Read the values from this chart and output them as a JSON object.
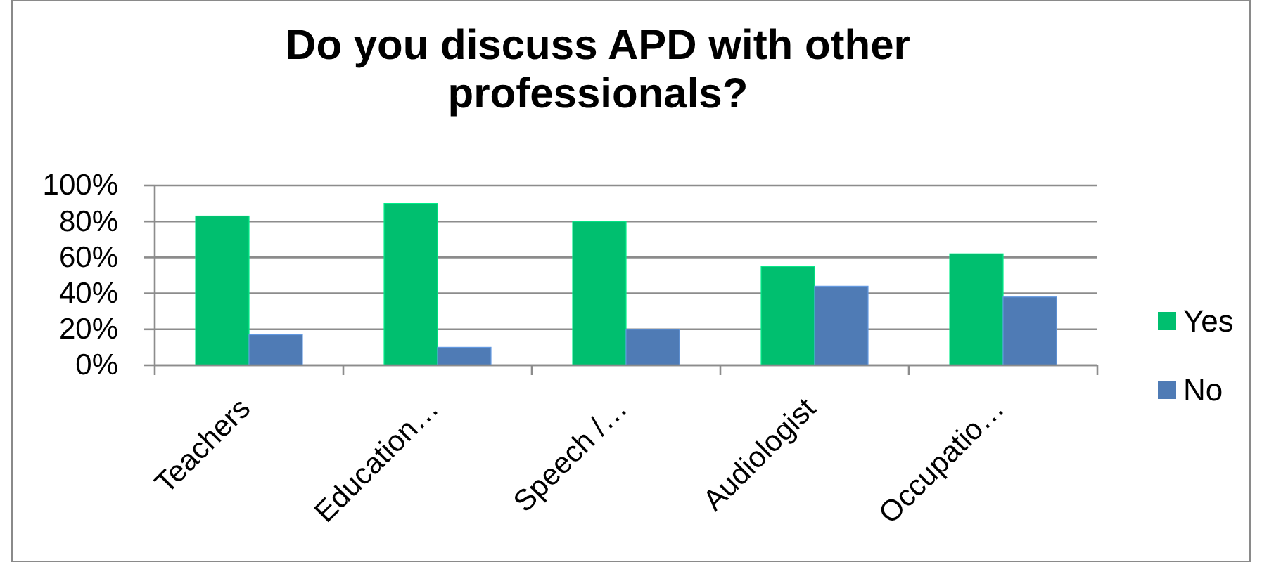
{
  "chart_data": {
    "type": "bar",
    "title": "Do you discuss APD with other professionals?",
    "categories": [
      "Teachers",
      "Education…",
      "Speech /…",
      "Audiologist",
      "Occupatio…"
    ],
    "series": [
      {
        "name": "Yes",
        "color": "#00bf6f",
        "values": [
          83,
          90,
          80,
          55,
          62
        ]
      },
      {
        "name": "No",
        "color": "#4f7bb5",
        "values": [
          17,
          10,
          20,
          44,
          38
        ]
      }
    ],
    "ylim": [
      0,
      100
    ],
    "yticks": [
      {
        "value": 0,
        "label": "0%"
      },
      {
        "value": 20,
        "label": "20%"
      },
      {
        "value": 40,
        "label": "40%"
      },
      {
        "value": 60,
        "label": "60%"
      },
      {
        "value": 80,
        "label": "80%"
      },
      {
        "value": 100,
        "label": "100%"
      }
    ],
    "grid": "y",
    "legend": "right"
  }
}
